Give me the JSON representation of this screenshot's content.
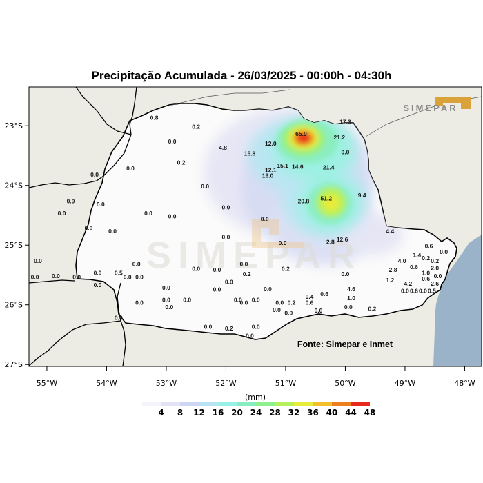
{
  "title": "Precipitação Acumulada - 26/03/2025 - 00:00h - 04:30h",
  "source": "Fonte: Simepar e Inmet",
  "logo_text": "SIMEPAR",
  "watermark_text": "SIMEPAR",
  "colorbar": {
    "unit": "(mm)",
    "labels": [
      "4",
      "8",
      "12",
      "16",
      "20",
      "24",
      "28",
      "32",
      "36",
      "40",
      "44",
      "48"
    ],
    "colors": [
      "#f4f4fa",
      "#e3e3f5",
      "#cfd6f2",
      "#b7e3f2",
      "#99f0e6",
      "#88edc0",
      "#8ff08e",
      "#b6f05a",
      "#e6ec3a",
      "#f2c02c",
      "#ee7f1f",
      "#e82b1b"
    ]
  },
  "axes": {
    "lon_labels": [
      "55°W",
      "54°W",
      "53°W",
      "52°W",
      "51°W",
      "50°W",
      "49°W",
      "48°W"
    ],
    "lat_labels": [
      "23°S",
      "24°S",
      "25°S",
      "26°S",
      "27°S"
    ]
  },
  "colors": {
    "ocean": "#9bb3c8",
    "land": "#ecebe4",
    "state": "#fbfbfb"
  },
  "stations": [
    {
      "v": "0.8",
      "lon": -53.2,
      "lat": -22.9
    },
    {
      "v": "0.2",
      "lon": -52.5,
      "lat": -23.05
    },
    {
      "v": "0.0",
      "lon": -52.9,
      "lat": -23.3
    },
    {
      "v": "4.8",
      "lon": -52.05,
      "lat": -23.4
    },
    {
      "v": "15.8",
      "lon": -51.6,
      "lat": -23.5
    },
    {
      "v": "12.0",
      "lon": -51.25,
      "lat": -23.33
    },
    {
      "v": "65.0",
      "lon": -50.74,
      "lat": -23.17
    },
    {
      "v": "17.3",
      "lon": -50.0,
      "lat": -22.97
    },
    {
      "v": "21.2",
      "lon": -50.1,
      "lat": -23.23
    },
    {
      "v": "0.0",
      "lon": -50.0,
      "lat": -23.48
    },
    {
      "v": "0.2",
      "lon": -52.75,
      "lat": -23.65
    },
    {
      "v": "15.1",
      "lon": -51.05,
      "lat": -23.7
    },
    {
      "v": "14.6",
      "lon": -50.8,
      "lat": -23.72
    },
    {
      "v": "12.1",
      "lon": -51.25,
      "lat": -23.78
    },
    {
      "v": "19.0",
      "lon": -51.3,
      "lat": -23.87
    },
    {
      "v": "21.4",
      "lon": -50.28,
      "lat": -23.73
    },
    {
      "v": "0.0",
      "lon": -53.6,
      "lat": -23.75
    },
    {
      "v": "0.0",
      "lon": -54.2,
      "lat": -23.85
    },
    {
      "v": "0.0",
      "lon": -52.35,
      "lat": -24.05
    },
    {
      "v": "9.4",
      "lon": -49.72,
      "lat": -24.2
    },
    {
      "v": "51.2",
      "lon": -50.32,
      "lat": -24.25
    },
    {
      "v": "20.8",
      "lon": -50.7,
      "lat": -24.3
    },
    {
      "v": "0.0",
      "lon": -54.6,
      "lat": -24.3
    },
    {
      "v": "0.0",
      "lon": -54.1,
      "lat": -24.35
    },
    {
      "v": "0.0",
      "lon": -52.0,
      "lat": -24.4
    },
    {
      "v": "0.0",
      "lon": -54.75,
      "lat": -24.5
    },
    {
      "v": "0.0",
      "lon": -53.3,
      "lat": -24.5
    },
    {
      "v": "0.0",
      "lon": -52.9,
      "lat": -24.55
    },
    {
      "v": "0.0",
      "lon": -51.35,
      "lat": -24.6
    },
    {
      "v": "0.0",
      "lon": -54.3,
      "lat": -24.75
    },
    {
      "v": "0.0",
      "lon": -53.9,
      "lat": -24.8
    },
    {
      "v": "0.0",
      "lon": -55.4,
      "lat": -24.9
    },
    {
      "v": "0.0",
      "lon": -52.0,
      "lat": -24.9
    },
    {
      "v": "4.4",
      "lon": -49.25,
      "lat": -24.8
    },
    {
      "v": "12.6",
      "lon": -50.05,
      "lat": -24.94
    },
    {
      "v": "2.8",
      "lon": -50.25,
      "lat": -24.98
    },
    {
      "v": "0.0",
      "lon": -51.05,
      "lat": -25.0
    },
    {
      "v": "0.6",
      "lon": -48.6,
      "lat": -25.05
    },
    {
      "v": "1.4",
      "lon": -48.8,
      "lat": -25.2
    },
    {
      "v": "0.2",
      "lon": -48.65,
      "lat": -25.25
    },
    {
      "v": "0.0",
      "lon": -48.35,
      "lat": -25.15
    },
    {
      "v": "4.0",
      "lon": -49.05,
      "lat": -25.3
    },
    {
      "v": "0.2",
      "lon": -48.5,
      "lat": -25.3
    },
    {
      "v": "0.0",
      "lon": -55.15,
      "lat": -25.3
    },
    {
      "v": "0.0",
      "lon": -53.5,
      "lat": -25.35
    },
    {
      "v": "0.0",
      "lon": -51.7,
      "lat": -25.35
    },
    {
      "v": "2.8",
      "lon": -49.2,
      "lat": -25.45
    },
    {
      "v": "0.6",
      "lon": -48.85,
      "lat": -25.4
    },
    {
      "v": "2.0",
      "lon": -48.5,
      "lat": -25.42
    },
    {
      "v": "0.0",
      "lon": -52.5,
      "lat": -25.43
    },
    {
      "v": "0.0",
      "lon": -52.15,
      "lat": -25.45
    },
    {
      "v": "0.2",
      "lon": -51.0,
      "lat": -25.43
    },
    {
      "v": "0.0",
      "lon": -54.85,
      "lat": -25.55
    },
    {
      "v": "0.2",
      "lon": -55.45,
      "lat": -25.57
    },
    {
      "v": "0.0",
      "lon": -55.2,
      "lat": -25.57
    },
    {
      "v": "0.0",
      "lon": -54.5,
      "lat": -25.57
    },
    {
      "v": "0.0",
      "lon": -54.15,
      "lat": -25.5
    },
    {
      "v": "0.5",
      "lon": -53.8,
      "lat": -25.5
    },
    {
      "v": "0.0",
      "lon": -53.65,
      "lat": -25.57
    },
    {
      "v": "0.0",
      "lon": -53.45,
      "lat": -25.57
    },
    {
      "v": "0.2",
      "lon": -51.65,
      "lat": -25.52
    },
    {
      "v": "0.0",
      "lon": -50.0,
      "lat": -25.52
    },
    {
      "v": "1.0",
      "lon": -48.65,
      "lat": -25.5
    },
    {
      "v": "0.0",
      "lon": -48.45,
      "lat": -25.55
    },
    {
      "v": "1.2",
      "lon": -49.25,
      "lat": -25.62
    },
    {
      "v": "0.6",
      "lon": -48.65,
      "lat": -25.6
    },
    {
      "v": "0.0",
      "lon": -54.15,
      "lat": -25.7
    },
    {
      "v": "0.0",
      "lon": -51.95,
      "lat": -25.65
    },
    {
      "v": "4.2",
      "lon": -48.95,
      "lat": -25.68
    },
    {
      "v": "2.6",
      "lon": -48.5,
      "lat": -25.68
    },
    {
      "v": "0.0",
      "lon": -53.0,
      "lat": -25.75
    },
    {
      "v": "0.0",
      "lon": -52.15,
      "lat": -25.78
    },
    {
      "v": "0.0",
      "lon": -51.3,
      "lat": -25.77
    },
    {
      "v": "4.6",
      "lon": -49.9,
      "lat": -25.77
    },
    {
      "v": "0.0",
      "lon": -49.0,
      "lat": -25.8
    },
    {
      "v": "0.6",
      "lon": -48.85,
      "lat": -25.8
    },
    {
      "v": "0.0",
      "lon": -48.7,
      "lat": -25.8
    },
    {
      "v": "0.5",
      "lon": -48.55,
      "lat": -25.8
    },
    {
      "v": "0.0",
      "lon": -53.0,
      "lat": -25.95
    },
    {
      "v": "0.0",
      "lon": -52.65,
      "lat": -25.95
    },
    {
      "v": "0.0",
      "lon": -51.8,
      "lat": -25.95
    },
    {
      "v": "0.0",
      "lon": -51.5,
      "lat": -25.95
    },
    {
      "v": "0.0",
      "lon": -51.1,
      "lat": -26.0
    },
    {
      "v": "0.2",
      "lon": -50.9,
      "lat": -26.0
    },
    {
      "v": "0.6",
      "lon": -50.6,
      "lat": -26.0
    },
    {
      "v": "1.0",
      "lon": -49.9,
      "lat": -25.92
    },
    {
      "v": "0.6",
      "lon": -50.35,
      "lat": -25.85
    },
    {
      "v": "0.4",
      "lon": -50.6,
      "lat": -25.9
    },
    {
      "v": "0.0",
      "lon": -53.45,
      "lat": -26.0
    },
    {
      "v": "0.0",
      "lon": -51.7,
      "lat": -26.0
    },
    {
      "v": "0.0",
      "lon": -52.95,
      "lat": -26.07
    },
    {
      "v": "0.0",
      "lon": -51.15,
      "lat": -26.12
    },
    {
      "v": "0.0",
      "lon": -50.95,
      "lat": -26.17
    },
    {
      "v": "0.0",
      "lon": -50.45,
      "lat": -26.13
    },
    {
      "v": "0.0",
      "lon": -49.95,
      "lat": -26.07
    },
    {
      "v": "0.2",
      "lon": -49.55,
      "lat": -26.1
    },
    {
      "v": "0.0",
      "lon": -53.8,
      "lat": -26.25
    },
    {
      "v": "0.0",
      "lon": -52.3,
      "lat": -26.4
    },
    {
      "v": "0.2",
      "lon": -51.95,
      "lat": -26.43
    },
    {
      "v": "0.0",
      "lon": -51.5,
      "lat": -26.4
    },
    {
      "v": "0.0",
      "lon": -51.6,
      "lat": -26.55
    }
  ]
}
